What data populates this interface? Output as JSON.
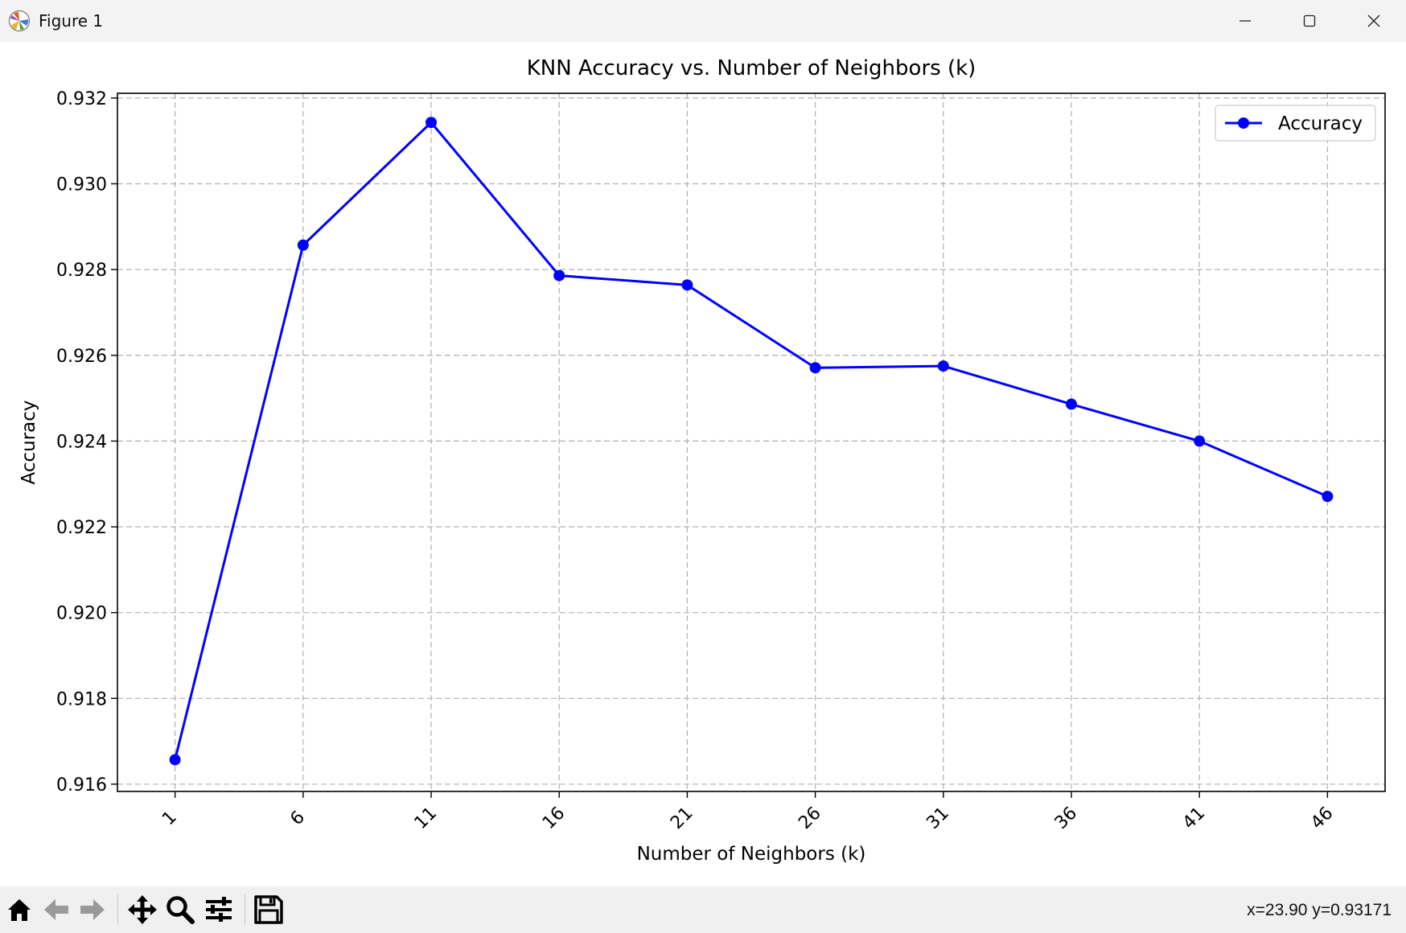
{
  "window": {
    "title": "Figure 1",
    "icon": "matplotlib-logo-icon",
    "controls": [
      "minimize-icon",
      "maximize-icon",
      "close-icon"
    ]
  },
  "toolbar": {
    "buttons": [
      "home-icon",
      "back-arrow-icon",
      "forward-arrow-icon",
      "pan-move-icon",
      "zoom-magnifier-icon",
      "configure-subplots-icon",
      "save-disk-icon"
    ],
    "coordinates": "x=23.90 y=0.93171"
  },
  "chart_data": {
    "type": "line",
    "title": "KNN Accuracy vs. Number of Neighbors (k)",
    "xlabel": "Number of Neighbors (k)",
    "ylabel": "Accuracy",
    "x": [
      1,
      6,
      11,
      16,
      21,
      26,
      31,
      36,
      41,
      46
    ],
    "x_tick_labels": [
      "1",
      "6",
      "11",
      "16",
      "21",
      "26",
      "31",
      "36",
      "41",
      "46"
    ],
    "y_ticks": [
      "0.916",
      "0.918",
      "0.920",
      "0.922",
      "0.924",
      "0.926",
      "0.928",
      "0.930",
      "0.932"
    ],
    "series": [
      {
        "name": "Accuracy",
        "color": "#0000ff",
        "marker": "circle",
        "values": [
          0.91657,
          0.92857,
          0.93143,
          0.92786,
          0.92764,
          0.92571,
          0.92575,
          0.92486,
          0.924,
          0.92271
        ]
      }
    ],
    "xlim": [
      -1.25,
      48.25
    ],
    "ylim": [
      0.91583,
      0.93211
    ],
    "grid": true,
    "grid_style": "dashed",
    "x_tick_rotation": 45,
    "legend_position": "top-right"
  }
}
